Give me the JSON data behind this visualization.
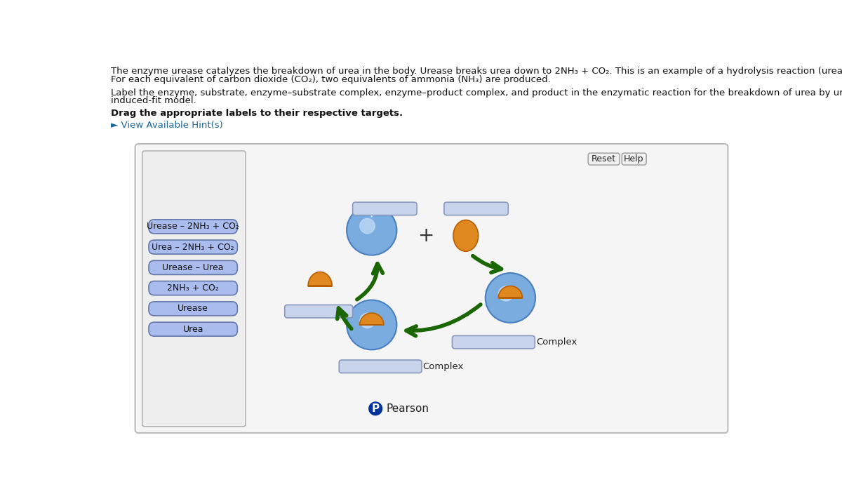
{
  "bg_color": "#ffffff",
  "text_line1": "The enzyme urease catalyzes the breakdown of urea in the body. Urease breaks urea down to 2NH₃ + CO₂. This is an example of a hydrolysis reaction (urea plus water",
  "text_line2": "For each equivalent of carbon dioxide (CO₂), two equivalents of ammonia (NH₃) are produced.",
  "text_line3": "Label the enzyme, substrate, enzyme–substrate complex, enzyme–product complex, and product in the enzymatic reaction for the breakdown of urea by urease using the",
  "text_line4": "induced-fit model.",
  "text_bold": "Drag the appropriate labels to their respective targets.",
  "hint_text": "► View Available Hint(s)",
  "hint_color": "#1a6699",
  "label_buttons": [
    "Urease – 2NH₃ + CO₂",
    "Urea – 2NH₃ + CO₂",
    "Urease – Urea",
    "2NH₃ + CO₂",
    "Urease",
    "Urea"
  ],
  "label_btn_bg": "#aabbee",
  "label_btn_edge": "#6677aa",
  "reset_btn": "Reset",
  "help_btn": "Help",
  "blue_enzyme": "#7aacdf",
  "blue_enzyme_edge": "#4a7fbf",
  "blue_highlight": "#c8dff8",
  "orange_color": "#e08820",
  "orange_edge": "#b86000",
  "green_arrow": "#1a6600",
  "green_arrow_light": "#44aa00",
  "empty_box_bg": "#c8d4ec",
  "empty_box_edge": "#8899bb",
  "outer_box_bg": "#f5f5f5",
  "outer_box_edge": "#bbbbbb",
  "left_panel_bg": "#eeeeee",
  "left_panel_edge": "#aaaaaa",
  "pearson_blue": "#003399",
  "font_size_text": 9.5,
  "font_size_btn": 9.0,
  "font_size_plus": 20
}
